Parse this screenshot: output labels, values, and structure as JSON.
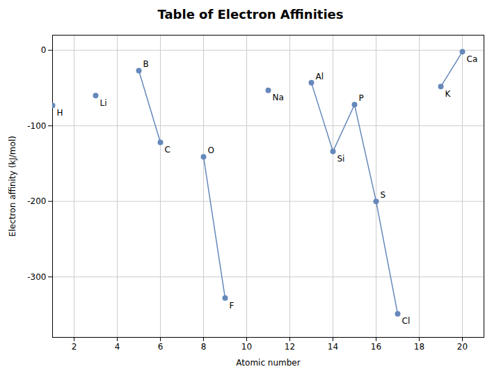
{
  "chart_data": {
    "type": "scatter",
    "title": "Table of Electron Affinities",
    "xlabel": "Atomic number",
    "ylabel": "Electron affinity (kJ/mol)",
    "series": [
      {
        "type": "scatter",
        "color": "#6688bb",
        "x": [
          1,
          3,
          5,
          6,
          8,
          9,
          11,
          13,
          14,
          15,
          16,
          17,
          19,
          20
        ],
        "values": [
          -73,
          -60,
          -27,
          -122,
          -141,
          -328,
          -53,
          -43,
          -134,
          -72,
          -200,
          -349,
          -48,
          -2
        ],
        "labels": [
          "H",
          "Li",
          "B",
          "C",
          "O",
          "F",
          "Na",
          "Al",
          "Si",
          "P",
          "S",
          "Cl",
          "K",
          "Ca"
        ]
      },
      {
        "type": "line",
        "color": "#6688bb",
        "x": [
          5,
          6
        ],
        "values": [
          -27,
          -122
        ]
      },
      {
        "type": "line",
        "color": "#6688bb",
        "x": [
          8,
          9
        ],
        "values": [
          -141,
          -328
        ]
      },
      {
        "type": "line",
        "color": "#6688bb",
        "x": [
          13,
          14,
          15,
          16,
          17
        ],
        "values": [
          -43,
          -134,
          -72,
          -200,
          -349
        ]
      },
      {
        "type": "line",
        "color": "#6688bb",
        "x": [
          19,
          20
        ],
        "values": [
          -48,
          -2
        ]
      }
    ],
    "xlim": [
      1,
      21
    ],
    "ylim": [
      -380,
      20
    ],
    "xticks": [
      2,
      4,
      6,
      8,
      10,
      12,
      14,
      16,
      18,
      20
    ],
    "yticks": [
      0,
      -100,
      -200,
      -300
    ],
    "grid": true
  }
}
